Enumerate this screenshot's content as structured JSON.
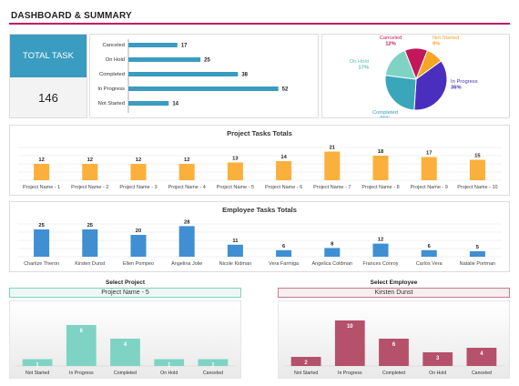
{
  "header": {
    "title": "DASHBOARD & SUMMARY"
  },
  "kpi": {
    "label": "TOTAL TASK",
    "value": "146"
  },
  "status_bars": {
    "chart_data": {
      "type": "bar",
      "categories": [
        "Canceled",
        "On Hold",
        "Completed",
        "In Progress",
        "Not Started"
      ],
      "values": [
        17,
        25,
        38,
        52,
        14
      ],
      "xlim": [
        0,
        60
      ]
    }
  },
  "status_pie": {
    "chart_data": {
      "type": "pie",
      "labels": [
        "Canceled",
        "Not Started",
        "In Progress",
        "Completed",
        "On Hold"
      ],
      "percents": [
        "12%",
        "9%",
        "36%",
        "26%",
        "17%"
      ],
      "values": [
        12,
        9,
        36,
        26,
        17
      ],
      "colors": [
        "#c2185b",
        "#f5a623",
        "#4a2fbf",
        "#3aa6b9",
        "#7fd3c4"
      ],
      "label_colors": [
        "#c2185b",
        "#f5a623",
        "#4a2fbf",
        "#3a9cc1",
        "#5bbfae"
      ]
    }
  },
  "project_totals": {
    "chart_data": {
      "type": "bar",
      "title": "Project Tasks Totals",
      "categories": [
        "Project Name - 1",
        "Project Name - 2",
        "Project Name - 3",
        "Project Name - 4",
        "Project Name - 5",
        "Project Name - 6",
        "Project Name - 7",
        "Project Name - 8",
        "Project Name - 9",
        "Project Name - 10"
      ],
      "values": [
        12,
        12,
        12,
        12,
        13,
        14,
        21,
        18,
        17,
        15
      ],
      "color": "#fbb03b",
      "ylim": [
        0,
        24
      ]
    }
  },
  "employee_totals": {
    "chart_data": {
      "type": "bar",
      "title": "Employee Tasks Totals",
      "categories": [
        "Charlize Theron",
        "Kirsten Dunst",
        "Ellen Pompeo",
        "Angelina Jolie",
        "Nicole Kidman",
        "Vera Farmiga",
        "Angelica Coldman",
        "Frances Conroy",
        "Carlos Vera",
        "Natalie Portman"
      ],
      "values": [
        25,
        25,
        20,
        28,
        11,
        6,
        8,
        12,
        6,
        5
      ],
      "color": "#3f8fd2",
      "ylim": [
        0,
        30
      ]
    }
  },
  "select_project": {
    "label": "Select Project",
    "selected": "Project Name - 5",
    "chart_data": {
      "type": "bar",
      "categories": [
        "Not Started",
        "In Progress",
        "Completed",
        "On Hold",
        "Canceled"
      ],
      "values": [
        1,
        6,
        4,
        1,
        1
      ],
      "color": "#7fd3c4",
      "ylim": [
        0,
        8
      ]
    }
  },
  "select_employee": {
    "label": "Select Employee",
    "selected": "Kirsten Dunst",
    "chart_data": {
      "type": "bar",
      "categories": [
        "Not Started",
        "In Progress",
        "Completed",
        "On Hold",
        "Canceled"
      ],
      "values": [
        2,
        10,
        6,
        3,
        4
      ],
      "color": "#b5516b",
      "ylim": [
        0,
        12
      ]
    }
  }
}
